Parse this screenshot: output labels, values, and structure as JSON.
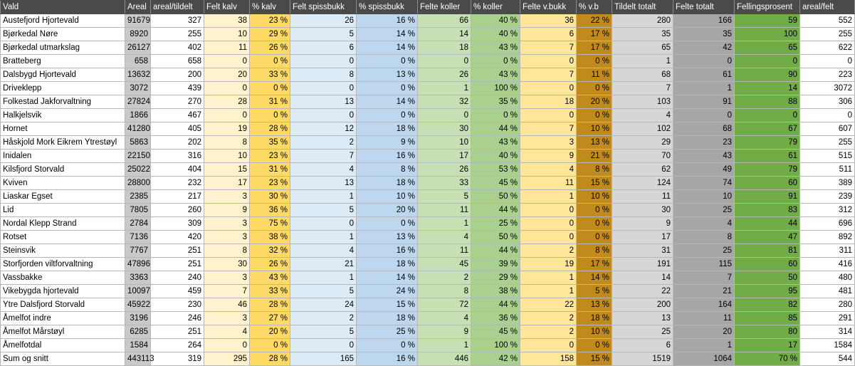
{
  "columns": [
    "Vald",
    "Areal",
    "areal/tildelt",
    "Felt kalv",
    "% kalv",
    "Felt spissbukk",
    "% spissbukk",
    "Felte koller",
    "% koller",
    "Felte v.bukk",
    "% v.b",
    "Tildelt totalt",
    "Felte totalt",
    "Fellingsprosent",
    "areal/felt"
  ],
  "rows": [
    [
      "Austefjord Hjortevald",
      "91679",
      "327",
      "38",
      "23 %",
      "26",
      "16 %",
      "66",
      "40 %",
      "36",
      "22 %",
      "280",
      "166",
      "59",
      "552"
    ],
    [
      "Bjørkedal Nøre",
      "8920",
      "255",
      "10",
      "29 %",
      "5",
      "14 %",
      "14",
      "40 %",
      "6",
      "17 %",
      "35",
      "35",
      "100",
      "255"
    ],
    [
      "Bjørkedal utmarkslag",
      "26127",
      "402",
      "11",
      "26 %",
      "6",
      "14 %",
      "18",
      "43 %",
      "7",
      "17 %",
      "65",
      "42",
      "65",
      "622"
    ],
    [
      "Bratteberg",
      "658",
      "658",
      "0",
      "0 %",
      "0",
      "0 %",
      "0",
      "0 %",
      "0",
      "0 %",
      "1",
      "0",
      "0",
      "0"
    ],
    [
      "Dalsbygd Hjortevald",
      "13632",
      "200",
      "20",
      "33 %",
      "8",
      "13 %",
      "26",
      "43 %",
      "7",
      "11 %",
      "68",
      "61",
      "90",
      "223"
    ],
    [
      "Driveklepp",
      "3072",
      "439",
      "0",
      "0 %",
      "0",
      "0 %",
      "1",
      "100 %",
      "0",
      "0 %",
      "7",
      "1",
      "14",
      "3072"
    ],
    [
      "Folkestad Jakforvaltning",
      "27824",
      "270",
      "28",
      "31 %",
      "13",
      "14 %",
      "32",
      "35 %",
      "18",
      "20 %",
      "103",
      "91",
      "88",
      "306"
    ],
    [
      "Halkjelsvik",
      "1866",
      "467",
      "0",
      "0 %",
      "0",
      "0 %",
      "0",
      "0 %",
      "0",
      "0 %",
      "4",
      "0",
      "0",
      "0"
    ],
    [
      "Hornet",
      "41280",
      "405",
      "19",
      "28 %",
      "12",
      "18 %",
      "30",
      "44 %",
      "7",
      "10 %",
      "102",
      "68",
      "67",
      "607"
    ],
    [
      "Håskjold Mork Eikrem Ytrestøyl",
      "5863",
      "202",
      "8",
      "35 %",
      "2",
      "9 %",
      "10",
      "43 %",
      "3",
      "13 %",
      "29",
      "23",
      "79",
      "255"
    ],
    [
      "Inidalen",
      "22150",
      "316",
      "10",
      "23 %",
      "7",
      "16 %",
      "17",
      "40 %",
      "9",
      "21 %",
      "70",
      "43",
      "61",
      "515"
    ],
    [
      "Kilsfjord Storvald",
      "25022",
      "404",
      "15",
      "31 %",
      "4",
      "8 %",
      "26",
      "53 %",
      "4",
      "8 %",
      "62",
      "49",
      "79",
      "511"
    ],
    [
      "Kviven",
      "28800",
      "232",
      "17",
      "23 %",
      "13",
      "18 %",
      "33",
      "45 %",
      "11",
      "15 %",
      "124",
      "74",
      "60",
      "389"
    ],
    [
      "Liaskar Egset",
      "2385",
      "217",
      "3",
      "30 %",
      "1",
      "10 %",
      "5",
      "50 %",
      "1",
      "10 %",
      "11",
      "10",
      "91",
      "239"
    ],
    [
      "Lid",
      "7805",
      "260",
      "9",
      "36 %",
      "5",
      "20 %",
      "11",
      "44 %",
      "0",
      "0 %",
      "30",
      "25",
      "83",
      "312"
    ],
    [
      "Nordal Klepp Strand",
      "2784",
      "309",
      "3",
      "75 %",
      "0",
      "0 %",
      "1",
      "25 %",
      "0",
      "0 %",
      "9",
      "4",
      "44",
      "696"
    ],
    [
      "Rotset",
      "7136",
      "420",
      "3",
      "38 %",
      "1",
      "13 %",
      "4",
      "50 %",
      "0",
      "0 %",
      "17",
      "8",
      "47",
      "892"
    ],
    [
      "Steinsvik",
      "7767",
      "251",
      "8",
      "32 %",
      "4",
      "16 %",
      "11",
      "44 %",
      "2",
      "8 %",
      "31",
      "25",
      "81",
      "311"
    ],
    [
      "Storfjorden viltforvaltning",
      "47896",
      "251",
      "30",
      "26 %",
      "21",
      "18 %",
      "45",
      "39 %",
      "19",
      "17 %",
      "191",
      "115",
      "60",
      "416"
    ],
    [
      "Vassbakke",
      "3363",
      "240",
      "3",
      "43 %",
      "1",
      "14 %",
      "2",
      "29 %",
      "1",
      "14 %",
      "14",
      "7",
      "50",
      "480"
    ],
    [
      "Vikebygda hjortevald",
      "10097",
      "459",
      "7",
      "33 %",
      "5",
      "24 %",
      "8",
      "38 %",
      "1",
      "5 %",
      "22",
      "21",
      "95",
      "481"
    ],
    [
      "Ytre Dalsfjord Storvald",
      "45922",
      "230",
      "46",
      "28 %",
      "24",
      "15 %",
      "72",
      "44 %",
      "22",
      "13 %",
      "200",
      "164",
      "82",
      "280"
    ],
    [
      "Åmelfot indre",
      "3196",
      "246",
      "3",
      "27 %",
      "2",
      "18 %",
      "4",
      "36 %",
      "2",
      "18 %",
      "13",
      "11",
      "85",
      "291"
    ],
    [
      "Åmelfot Mårstøyl",
      "6285",
      "251",
      "4",
      "20 %",
      "5",
      "25 %",
      "9",
      "45 %",
      "2",
      "10 %",
      "25",
      "20",
      "80",
      "314"
    ],
    [
      "Åmelfotdal",
      "1584",
      "264",
      "0",
      "0 %",
      "0",
      "0 %",
      "1",
      "100 %",
      "0",
      "0 %",
      "6",
      "1",
      "17",
      "1584"
    ]
  ],
  "sum_row": [
    "Sum og snitt",
    "443113",
    "319",
    "295",
    "28 %",
    "165",
    "16 %",
    "446",
    "42 %",
    "158",
    "15 %",
    "1519",
    "1064",
    "70 %",
    "544"
  ],
  "colors": {
    "header": "#4a4a4a",
    "areal": "#c9c9c9",
    "kalv": "#fff2cc",
    "pct_kalv": "#ffd966",
    "spissbukk": "#ddebf7",
    "pct_spissbukk": "#bdd7ee",
    "koller": "#c6e0b4",
    "pct_koller": "#a9d08e",
    "vbukk": "#ffe699",
    "pct_vb": "#c08a1c",
    "tildelt": "#d6d6d6",
    "felte": "#a6a6a6",
    "fellingsprosent": "#70ad47"
  }
}
